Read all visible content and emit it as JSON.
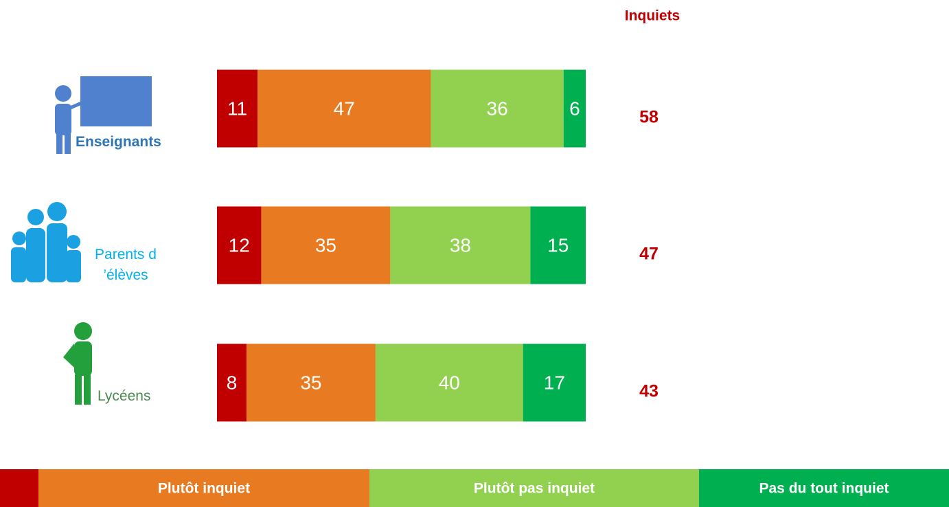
{
  "chart_data": {
    "type": "stacked-bar",
    "orientation": "horizontal",
    "categories": [
      "Enseignants",
      "Parents d ’élèves",
      "Lycéens"
    ],
    "series": [
      {
        "name": null,
        "color": "#c00000",
        "values": [
          11,
          12,
          8
        ]
      },
      {
        "name": "Plutôt inquiet",
        "color": "#e87b22",
        "values": [
          47,
          35,
          35
        ]
      },
      {
        "name": "Plutôt pas inquiet",
        "color": "#92d050",
        "values": [
          36,
          38,
          40
        ]
      },
      {
        "name": "Pas du tout inquiet",
        "color": "#00b050",
        "values": [
          6,
          15,
          17
        ]
      }
    ],
    "totals": {
      "title": "Inquiets",
      "color": "#c00000",
      "values": [
        58,
        47,
        43
      ]
    }
  }
}
